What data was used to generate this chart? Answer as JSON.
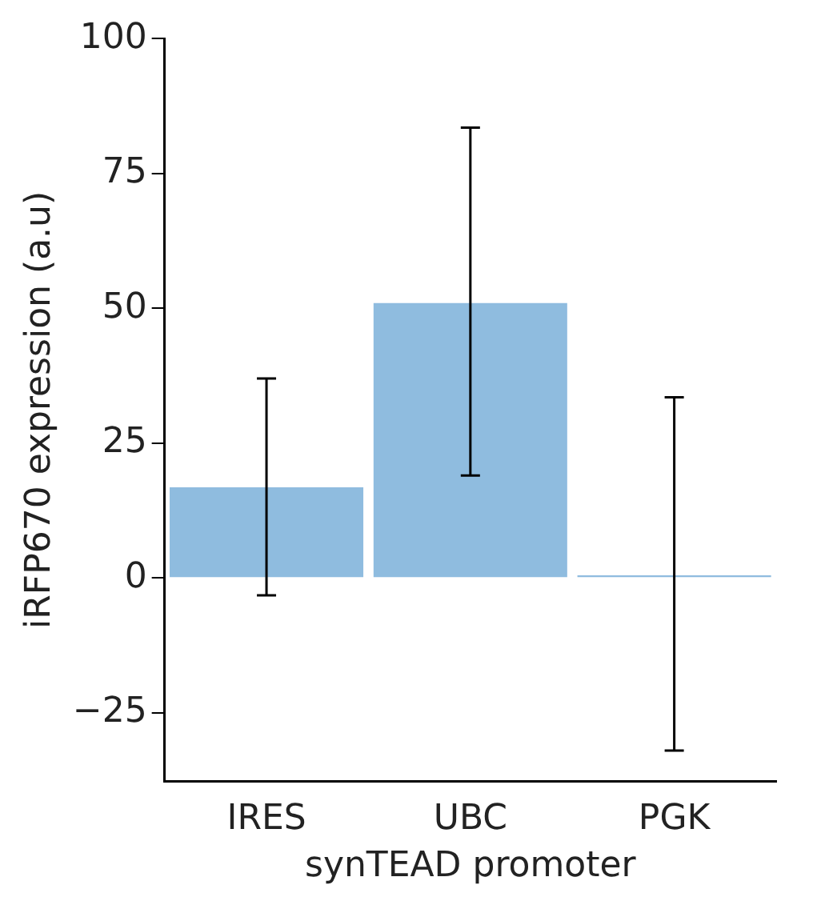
{
  "chart_data": {
    "type": "bar",
    "xlabel": "synTEAD promoter",
    "ylabel": "iRFP670 expression (a.u)",
    "categories": [
      "IRES",
      "UBC",
      "PGK"
    ],
    "values": [
      16.8,
      51,
      0.5
    ],
    "errors": [
      [
        -3.2,
        37
      ],
      [
        19,
        83.5
      ],
      [
        -32,
        33.5
      ]
    ],
    "color": "#8fbcdf",
    "ylim": [
      -37.7,
      100
    ],
    "yticks": [
      {
        "value": -25,
        "label": "−25"
      },
      0,
      25,
      50,
      75,
      100
    ],
    "grid": false
  }
}
